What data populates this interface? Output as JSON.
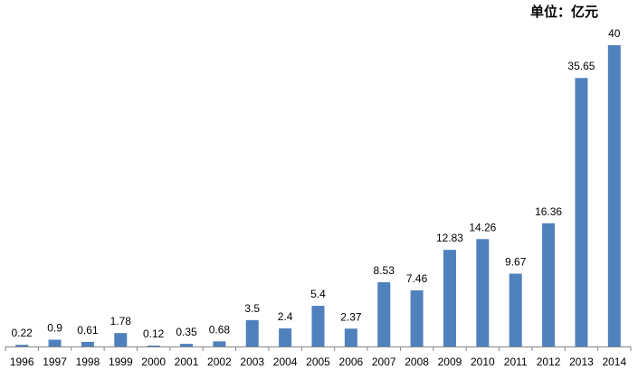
{
  "chart_data": {
    "type": "bar",
    "unit_label": "单位：亿元",
    "categories": [
      "1996",
      "1997",
      "1998",
      "1999",
      "2000",
      "2001",
      "2002",
      "2003",
      "2004",
      "2005",
      "2006",
      "2007",
      "2008",
      "2009",
      "2010",
      "2011",
      "2012",
      "2013",
      "2014"
    ],
    "value_labels": [
      "0.22",
      "0.9",
      "0.61",
      "1.78",
      "0.12",
      "0.35",
      "0.68",
      "3.5",
      "2.4",
      "5.4",
      "2.37",
      "8.53",
      "7.46",
      "12.83",
      "14.26",
      "9.67",
      "16.36",
      "35.65",
      "40"
    ],
    "values": [
      0.22,
      0.9,
      0.61,
      1.78,
      0.12,
      0.35,
      0.68,
      3.5,
      2.4,
      5.4,
      2.37,
      8.53,
      7.46,
      12.83,
      14.26,
      9.67,
      16.36,
      35.65,
      40
    ],
    "ylim": [
      0,
      40
    ],
    "grid": false,
    "bar_color": "#4F81BD",
    "axis_color": "#868686"
  }
}
